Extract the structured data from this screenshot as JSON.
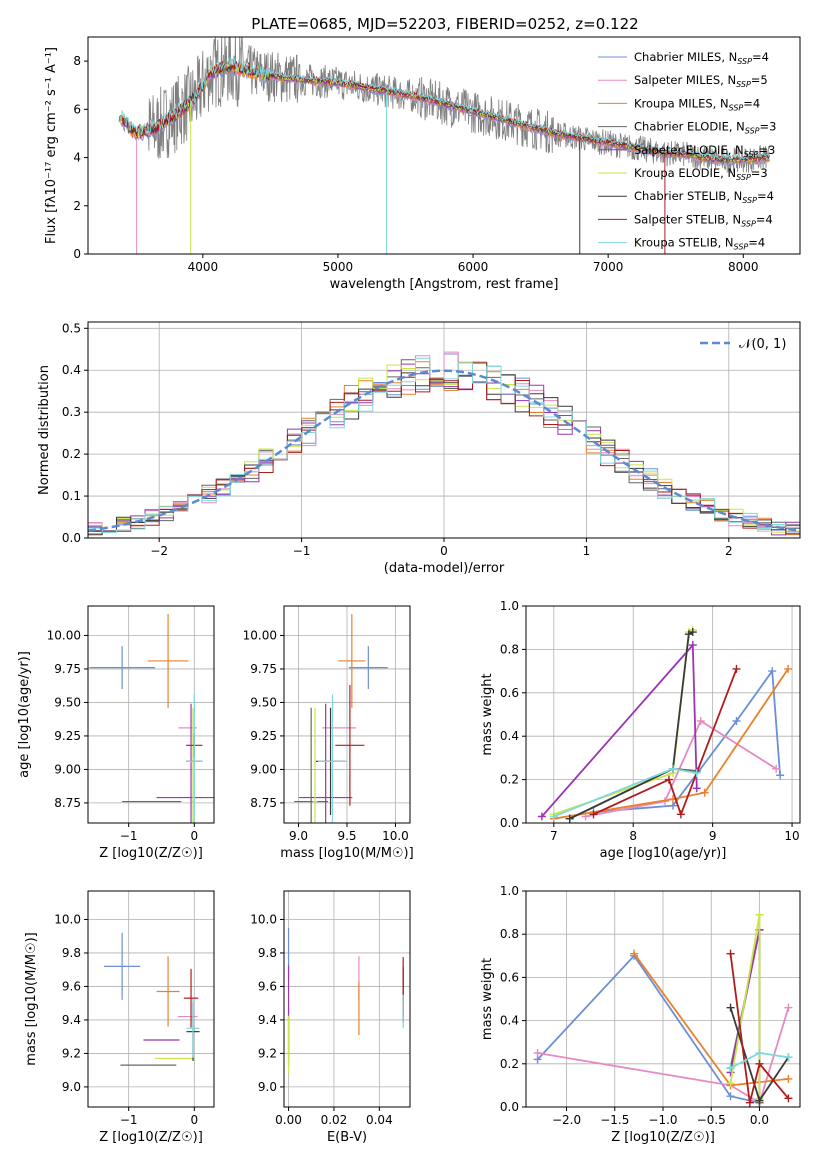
{
  "figure_title": "PLATE=0685, MJD=52203, FIBERID=0252, z=0.122",
  "colors": {
    "Chabrier MILES": "#6b8fd6",
    "Salpeter MILES": "#e58ac3",
    "Kroupa MILES": "#e8822a",
    "Chabrier ELODIE": "#666666",
    "Salpeter ELODIE": "#9b35b3",
    "Kroupa ELODIE": "#c9e648",
    "Chabrier STELIB": "#3a3a3a",
    "Salpeter STELIB": "#b01c1c",
    "Kroupa STELIB": "#7fd8de"
  },
  "chart_data": [
    {
      "id": "spectrum",
      "type": "line",
      "xlabel": "wavelength [Angstrom, rest frame]",
      "ylabel": "Flux [fλ10⁻¹⁷ erg cm⁻² s⁻¹ A⁻¹]",
      "xlim": [
        3150,
        8420
      ],
      "ylim": [
        0,
        9
      ],
      "xticks": [
        "4000",
        "5000",
        "6000",
        "7000",
        "8000"
      ],
      "yticks": [
        "0",
        "2",
        "4",
        "6",
        "8"
      ],
      "grid": false,
      "legend_position": "top-right",
      "data_color": "#808080",
      "continuum": {
        "x": [
          3400,
          3500,
          3650,
          3800,
          3950,
          4050,
          4200,
          4400,
          4600,
          4800,
          5000,
          5200,
          5400,
          5600,
          5800,
          6000,
          6200,
          6400,
          6600,
          6800,
          7000,
          7200,
          7400,
          7600,
          7800,
          8000,
          8200
        ],
        "y": [
          5.6,
          5.0,
          5.2,
          5.8,
          6.5,
          7.5,
          7.8,
          7.5,
          7.3,
          7.2,
          7.1,
          6.9,
          6.7,
          6.5,
          6.2,
          5.9,
          5.6,
          5.3,
          5.0,
          4.8,
          4.6,
          4.4,
          4.2,
          4.1,
          3.9,
          3.9,
          4.0
        ]
      },
      "legend": [
        {
          "label": "Chabrier MILES, N",
          "sub": "SSP",
          "tail": "=4"
        },
        {
          "label": "Salpeter MILES, N",
          "sub": "SSP",
          "tail": "=5"
        },
        {
          "label": "Kroupa MILES, N",
          "sub": "SSP",
          "tail": "=4"
        },
        {
          "label": "Chabrier ELODIE, N",
          "sub": "SSP",
          "tail": "=3"
        },
        {
          "label": "Salpeter ELODIE, N",
          "sub": "SSP",
          "tail": "=3"
        },
        {
          "label": "Kroupa ELODIE, N",
          "sub": "SSP",
          "tail": "=3"
        },
        {
          "label": "Chabrier STELIB, N",
          "sub": "SSP",
          "tail": "=4"
        },
        {
          "label": "Salpeter STELIB, N",
          "sub": "SSP",
          "tail": "=4"
        },
        {
          "label": "Kroupa STELIB, N",
          "sub": "SSP",
          "tail": "=4"
        }
      ]
    },
    {
      "id": "residuals",
      "type": "area",
      "xlabel": "(data-model)/error",
      "ylabel": "Normed distribution",
      "xlim": [
        -2.5,
        2.5
      ],
      "ylim": [
        0,
        0.515
      ],
      "xticks": [
        "−2",
        "−1",
        "0",
        "1",
        "2"
      ],
      "yticks": [
        "0.0",
        "0.1",
        "0.2",
        "0.3",
        "0.4",
        "0.5"
      ],
      "grid": true,
      "legend_position": "top-right",
      "legend": "𝒩(0, 1)",
      "gaussian": {
        "mean": 0,
        "sigma": 1
      },
      "bin_width": 0.1
    },
    {
      "id": "age-vs-Z",
      "type": "scatter",
      "xlabel": "Z [log10(Z/Z☉)]",
      "ylabel": "age  [log10(age/yr)]",
      "xlim": [
        -1.62,
        0.3
      ],
      "ylim": [
        8.6,
        10.22
      ],
      "xticks": [
        "−1",
        "0"
      ],
      "yticks": [
        "8.75",
        "9.00",
        "9.25",
        "9.50",
        "9.75",
        "10.00"
      ],
      "grid": true,
      "points": [
        {
          "model": "Chabrier MILES",
          "x": -1.1,
          "y": 9.76,
          "xerr": 1.0,
          "yerr": 0.32
        },
        {
          "model": "Salpeter MILES",
          "x": -0.1,
          "y": 9.31,
          "xerr": 0.28,
          "yerr": 0
        },
        {
          "model": "Kroupa MILES",
          "x": -0.4,
          "y": 9.81,
          "xerr": 0.62,
          "yerr": 0.7
        },
        {
          "model": "Chabrier ELODIE",
          "x": -0.65,
          "y": 8.76,
          "xerr": 0.9,
          "yerr": 0
        },
        {
          "model": "Salpeter ELODIE",
          "x": -0.05,
          "y": 8.79,
          "xerr": 1.05,
          "yerr": 1.4
        },
        {
          "model": "Kroupa ELODIE",
          "x": -0.02,
          "y": 8.76,
          "xerr": 0.05,
          "yerr": 1.4
        },
        {
          "model": "Chabrier STELIB",
          "x": 0.0,
          "y": 9.06,
          "xerr": 0.25,
          "yerr": 0
        },
        {
          "model": "Salpeter STELIB",
          "x": 0.0,
          "y": 9.18,
          "xerr": 0.25,
          "yerr": 0.18
        },
        {
          "model": "Kroupa STELIB",
          "x": 0.0,
          "y": 9.06,
          "xerr": 0.25,
          "yerr": 1.0
        }
      ]
    },
    {
      "id": "age-vs-mass",
      "type": "scatter",
      "xlabel": "mass [log10(M/M☉)]",
      "ylabel": "",
      "xlim": [
        8.85,
        10.15
      ],
      "ylim": [
        8.6,
        10.22
      ],
      "xticks": [
        "9.0",
        "9.5",
        "10.0"
      ],
      "yticks": [
        "8.75",
        "9.00",
        "9.25",
        "9.50",
        "9.75",
        "10.00"
      ],
      "grid": true,
      "points": [
        {
          "model": "Chabrier MILES",
          "x": 9.72,
          "y": 9.76,
          "xerr": 0.4,
          "yerr": 0.32
        },
        {
          "model": "Salpeter MILES",
          "x": 9.42,
          "y": 9.31,
          "xerr": 0.35,
          "yerr": 0
        },
        {
          "model": "Kroupa MILES",
          "x": 9.55,
          "y": 9.81,
          "xerr": 0.28,
          "yerr": 0.7
        },
        {
          "model": "Chabrier ELODIE",
          "x": 9.13,
          "y": 8.76,
          "xerr": 0.35,
          "yerr": 1.4
        },
        {
          "model": "Salpeter ELODIE",
          "x": 9.28,
          "y": 8.79,
          "xerr": 0.55,
          "yerr": 1.4
        },
        {
          "model": "Kroupa ELODIE",
          "x": 9.17,
          "y": 8.76,
          "xerr": 0.05,
          "yerr": 1.4
        },
        {
          "model": "Chabrier STELIB",
          "x": 9.33,
          "y": 9.06,
          "xerr": 0.3,
          "yerr": 0.8
        },
        {
          "model": "Salpeter STELIB",
          "x": 9.53,
          "y": 9.18,
          "xerr": 0.3,
          "yerr": 0.9
        },
        {
          "model": "Kroupa STELIB",
          "x": 9.35,
          "y": 9.06,
          "xerr": 0.3,
          "yerr": 1.0
        }
      ]
    },
    {
      "id": "weight-vs-age",
      "type": "line",
      "xlabel": "age  [log10(age/yr)]",
      "ylabel": "mass weight",
      "xlim": [
        6.65,
        10.1
      ],
      "ylim": [
        0,
        1
      ],
      "xticks": [
        "7",
        "8",
        "9",
        "10"
      ],
      "yticks": [
        "0.0",
        "0.2",
        "0.4",
        "0.6",
        "0.8",
        "1.0"
      ],
      "grid": true,
      "series": [
        {
          "model": "Chabrier MILES",
          "x": [
            7.5,
            8.5,
            9.3,
            9.75,
            9.85
          ],
          "y": [
            0.05,
            0.08,
            0.47,
            0.7,
            0.22
          ]
        },
        {
          "model": "Salpeter MILES",
          "x": [
            7.4,
            8.4,
            8.85,
            9.8
          ],
          "y": [
            0.03,
            0.1,
            0.47,
            0.25
          ]
        },
        {
          "model": "Kroupa MILES",
          "x": [
            7.0,
            8.5,
            8.9,
            9.95
          ],
          "y": [
            0.02,
            0.11,
            0.14,
            0.71
          ]
        },
        {
          "model": "Chabrier ELODIE",
          "x": [
            7.2,
            8.5,
            8.8
          ],
          "y": [
            0.02,
            0.25,
            0.24
          ]
        },
        {
          "model": "Salpeter ELODIE",
          "x": [
            6.85,
            8.75,
            8.8
          ],
          "y": [
            0.03,
            0.82,
            0.16
          ]
        },
        {
          "model": "Kroupa ELODIE",
          "x": [
            7.0,
            8.5,
            8.7,
            8.75
          ],
          "y": [
            0.04,
            0.23,
            0.88,
            0.89
          ]
        },
        {
          "model": "Chabrier STELIB",
          "x": [
            7.2,
            8.5,
            8.7,
            8.75
          ],
          "y": [
            0.02,
            0.25,
            0.87,
            0.88
          ]
        },
        {
          "model": "Salpeter STELIB",
          "x": [
            7.5,
            8.45,
            8.6,
            9.3
          ],
          "y": [
            0.04,
            0.2,
            0.04,
            0.71
          ]
        },
        {
          "model": "Kroupa STELIB",
          "x": [
            7.0,
            8.5,
            8.8
          ],
          "y": [
            0.03,
            0.25,
            0.23
          ]
        }
      ]
    },
    {
      "id": "mass-vs-Z",
      "type": "scatter",
      "xlabel": "Z [log10(Z/Z☉)]",
      "ylabel": "mass [log10(M/M☉)]",
      "xlim": [
        -1.62,
        0.3
      ],
      "ylim": [
        8.88,
        10.17
      ],
      "xticks": [
        "−1",
        "0"
      ],
      "yticks": [
        "9.0",
        "9.2",
        "9.4",
        "9.6",
        "9.8",
        "10.0"
      ],
      "grid": true,
      "points": [
        {
          "model": "Chabrier MILES",
          "x": -1.1,
          "y": 9.72,
          "xerr": 0.55,
          "yerr": 0.4
        },
        {
          "model": "Salpeter MILES",
          "x": -0.1,
          "y": 9.42,
          "xerr": 0.3,
          "yerr": 0
        },
        {
          "model": "Kroupa MILES",
          "x": -0.4,
          "y": 9.57,
          "xerr": 0.35,
          "yerr": 0.42
        },
        {
          "model": "Chabrier ELODIE",
          "x": -0.7,
          "y": 9.13,
          "xerr": 0.85,
          "yerr": 0
        },
        {
          "model": "Salpeter ELODIE",
          "x": -0.5,
          "y": 9.28,
          "xerr": 0.55,
          "yerr": 0
        },
        {
          "model": "Kroupa ELODIE",
          "x": -0.3,
          "y": 9.17,
          "xerr": 0.6,
          "yerr": 0
        },
        {
          "model": "Chabrier STELIB",
          "x": -0.02,
          "y": 9.33,
          "xerr": 0.2,
          "yerr": 0.35
        },
        {
          "model": "Salpeter STELIB",
          "x": -0.05,
          "y": 9.53,
          "xerr": 0.22,
          "yerr": 0.35
        },
        {
          "model": "Kroupa STELIB",
          "x": -0.02,
          "y": 9.35,
          "xerr": 0.2,
          "yerr": 0.35
        }
      ]
    },
    {
      "id": "mass-vs-EBV",
      "type": "scatter",
      "xlabel": "E(B-V)",
      "ylabel": "",
      "xlim": [
        -0.002,
        0.0535
      ],
      "ylim": [
        8.88,
        10.17
      ],
      "xticks": [
        "0.00",
        "0.02",
        "0.04"
      ],
      "yticks": [
        "9.0",
        "9.2",
        "9.4",
        "9.6",
        "9.8",
        "10.0"
      ],
      "grid": true,
      "points": [
        {
          "model": "Chabrier MILES",
          "x": 0.0,
          "y": 9.8,
          "xerr": 0,
          "yerr": 0.3
        },
        {
          "model": "Salpeter MILES",
          "x": 0.031,
          "y": 9.65,
          "xerr": 0,
          "yerr": 0.26
        },
        {
          "model": "Kroupa MILES",
          "x": 0.031,
          "y": 9.47,
          "xerr": 0,
          "yerr": 0.32
        },
        {
          "model": "Chabrier ELODIE",
          "x": 0.0,
          "y": 9.3,
          "xerr": 0,
          "yerr": 0.35
        },
        {
          "model": "Salpeter ELODIE",
          "x": 0.0,
          "y": 9.45,
          "xerr": 0,
          "yerr": 0.55
        },
        {
          "model": "Kroupa ELODIE",
          "x": 0.0,
          "y": 9.25,
          "xerr": 0,
          "yerr": 0.35
        },
        {
          "model": "Chabrier STELIB",
          "x": 0.0505,
          "y": 9.55,
          "xerr": 0,
          "yerr": 0.33
        },
        {
          "model": "Salpeter STELIB",
          "x": 0.0505,
          "y": 9.6,
          "xerr": 0,
          "yerr": 0.35
        },
        {
          "model": "Kroupa STELIB",
          "x": 0.0505,
          "y": 9.45,
          "xerr": 0,
          "yerr": 0.2
        }
      ]
    },
    {
      "id": "weight-vs-Z",
      "type": "line",
      "xlabel": "Z [log10(Z/Z☉)]",
      "ylabel": "mass weight",
      "xlim": [
        -2.42,
        0.42
      ],
      "ylim": [
        0,
        1
      ],
      "xticks": [
        "−2.0",
        "−1.5",
        "−1.0",
        "−0.5",
        "0.0"
      ],
      "yticks": [
        "0.0",
        "0.2",
        "0.4",
        "0.6",
        "0.8",
        "1.0"
      ],
      "grid": true,
      "series": [
        {
          "model": "Chabrier MILES",
          "x": [
            -2.3,
            -1.3,
            -0.3,
            0.0
          ],
          "y": [
            0.22,
            0.7,
            0.05,
            0.02
          ]
        },
        {
          "model": "Salpeter MILES",
          "x": [
            -2.3,
            -0.3,
            0.0,
            0.3
          ],
          "y": [
            0.25,
            0.1,
            0.02,
            0.46
          ]
        },
        {
          "model": "Kroupa MILES",
          "x": [
            -1.3,
            -0.3,
            0.3
          ],
          "y": [
            0.71,
            0.1,
            0.13
          ]
        },
        {
          "model": "Chabrier ELODIE",
          "x": [
            -0.3,
            0.0,
            0.0
          ],
          "y": [
            0.18,
            0.82,
            0.02
          ]
        },
        {
          "model": "Salpeter ELODIE",
          "x": [
            -0.3,
            0.0,
            0.0
          ],
          "y": [
            0.16,
            0.82,
            0.03
          ]
        },
        {
          "model": "Kroupa ELODIE",
          "x": [
            -0.3,
            0.0,
            0.0
          ],
          "y": [
            0.11,
            0.89,
            0.04
          ]
        },
        {
          "model": "Chabrier STELIB",
          "x": [
            -0.3,
            0.0,
            0.3
          ],
          "y": [
            0.46,
            0.03,
            0.23
          ]
        },
        {
          "model": "Salpeter STELIB",
          "x": [
            -0.3,
            -0.1,
            0.0,
            0.3
          ],
          "y": [
            0.71,
            0.02,
            0.2,
            0.04
          ]
        },
        {
          "model": "Kroupa STELIB",
          "x": [
            -0.3,
            0.0,
            0.3
          ],
          "y": [
            0.18,
            0.25,
            0.23
          ]
        }
      ]
    }
  ]
}
